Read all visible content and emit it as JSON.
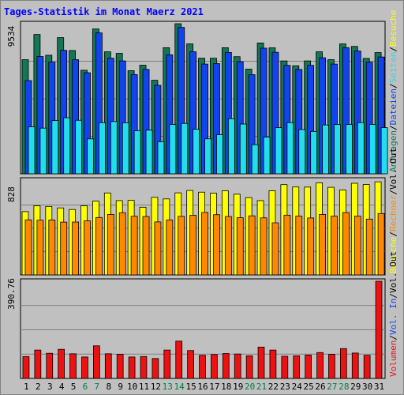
{
  "title": "Tages-Statistik im Monat Maerz 2021",
  "colors": {
    "anfragen": "#117755",
    "dateien": "#1144ee",
    "seiten": "#22ddee",
    "besuche": "#ffff00",
    "rechner": "#ff8800",
    "volumen": "#ee1111",
    "weekend_label": "#008040",
    "label": "#000000"
  },
  "chart_data": [
    {
      "type": "bar",
      "panel": "top",
      "ymax_label": "9534",
      "ylim": [
        0,
        9534
      ],
      "grid": true,
      "right_legend": [
        {
          "text": "Anfragen",
          "color": "#117755"
        },
        {
          "text": "/",
          "color": "#000000"
        },
        {
          "text": "Dateien",
          "color": "#1144ee"
        },
        {
          "text": "/",
          "color": "#000000"
        },
        {
          "text": "Seiten",
          "color": "#22ddee"
        },
        {
          "text": "/",
          "color": "#000000"
        },
        {
          "text": "Besuche",
          "color": "#ffff00"
        }
      ],
      "series": [
        {
          "name": "Anfragen",
          "values": [
            7250,
            8850,
            7530,
            8650,
            7830,
            6580,
            9200,
            7750,
            7650,
            6550,
            6900,
            5940,
            8010,
            9534,
            8250,
            7340,
            7340,
            8010,
            7440,
            6650,
            8310,
            8000,
            7170,
            6860,
            7170,
            7750,
            7250,
            8250,
            8090,
            7330,
            7700
          ]
        },
        {
          "name": "Dateien",
          "values": [
            5920,
            7450,
            7090,
            7840,
            7250,
            6420,
            8950,
            7340,
            7170,
            6300,
            6630,
            5620,
            7560,
            9300,
            7750,
            6970,
            7000,
            7710,
            7120,
            6300,
            7980,
            7720,
            6890,
            6630,
            6890,
            7370,
            6970,
            8010,
            7800,
            7090,
            7420
          ]
        },
        {
          "name": "Seiten",
          "values": [
            2980,
            2900,
            3380,
            3560,
            3400,
            2220,
            3250,
            3320,
            3240,
            2740,
            2770,
            2040,
            3130,
            3200,
            2830,
            2220,
            2480,
            3500,
            3160,
            1850,
            2330,
            2930,
            3250,
            2810,
            2690,
            3100,
            3130,
            3130,
            3250,
            3130,
            2930
          ]
        }
      ]
    },
    {
      "type": "bar",
      "panel": "middle",
      "ymax_label": "828",
      "ylim": [
        0,
        828
      ],
      "grid": true,
      "right_legend": [
        {
          "text": "Besuche",
          "color": "#ffff00"
        },
        {
          "text": "/",
          "color": "#000000"
        },
        {
          "text": "Rechner",
          "color": "#ff8800"
        },
        {
          "text": "/",
          "color": "#000000"
        },
        {
          "text": "Vol. Out",
          "color": "#000000"
        }
      ],
      "series": [
        {
          "name": "Besuche",
          "values": [
            562,
            614,
            608,
            595,
            581,
            614,
            656,
            728,
            660,
            662,
            601,
            689,
            675,
            729,
            750,
            735,
            727,
            748,
            717,
            687,
            660,
            748,
            802,
            781,
            780,
            818,
            778,
            754,
            814,
            803,
            827
          ]
        },
        {
          "name": "Rechner",
          "values": [
            489,
            486,
            488,
            469,
            470,
            480,
            510,
            537,
            553,
            521,
            519,
            471,
            488,
            520,
            530,
            555,
            535,
            519,
            508,
            525,
            507,
            463,
            531,
            522,
            506,
            537,
            522,
            554,
            522,
            496,
            545
          ]
        }
      ]
    },
    {
      "type": "bar",
      "panel": "bottom",
      "ymax_label": "390.76",
      "ylim": [
        0,
        390.76
      ],
      "grid": true,
      "right_legend": [
        {
          "text": "Volumen",
          "color": "#ee1111"
        },
        {
          "text": "/",
          "color": "#000000"
        },
        {
          "text": "Vol. In",
          "color": "#1144ee"
        },
        {
          "text": "/",
          "color": "#000000"
        },
        {
          "text": "Vol. Out",
          "color": "#000000"
        }
      ],
      "series": [
        {
          "name": "Volumen",
          "values": [
            88,
            114,
            101,
            117,
            99,
            86,
            131,
            99,
            97,
            86,
            88,
            80,
            114,
            150,
            112,
            93,
            96,
            100,
            98,
            91,
            126,
            114,
            89,
            91,
            94,
            104,
            97,
            120,
            102,
            93,
            390.76
          ]
        }
      ]
    }
  ],
  "x_axis": {
    "categories": [
      "1",
      "2",
      "3",
      "4",
      "5",
      "6",
      "7",
      "8",
      "9",
      "10",
      "11",
      "12",
      "13",
      "14",
      "15",
      "16",
      "17",
      "18",
      "19",
      "20",
      "21",
      "22",
      "23",
      "24",
      "25",
      "26",
      "27",
      "28",
      "29",
      "30",
      "31"
    ],
    "weekend_days": [
      "6",
      "7",
      "13",
      "14",
      "20",
      "21",
      "27",
      "28"
    ]
  }
}
